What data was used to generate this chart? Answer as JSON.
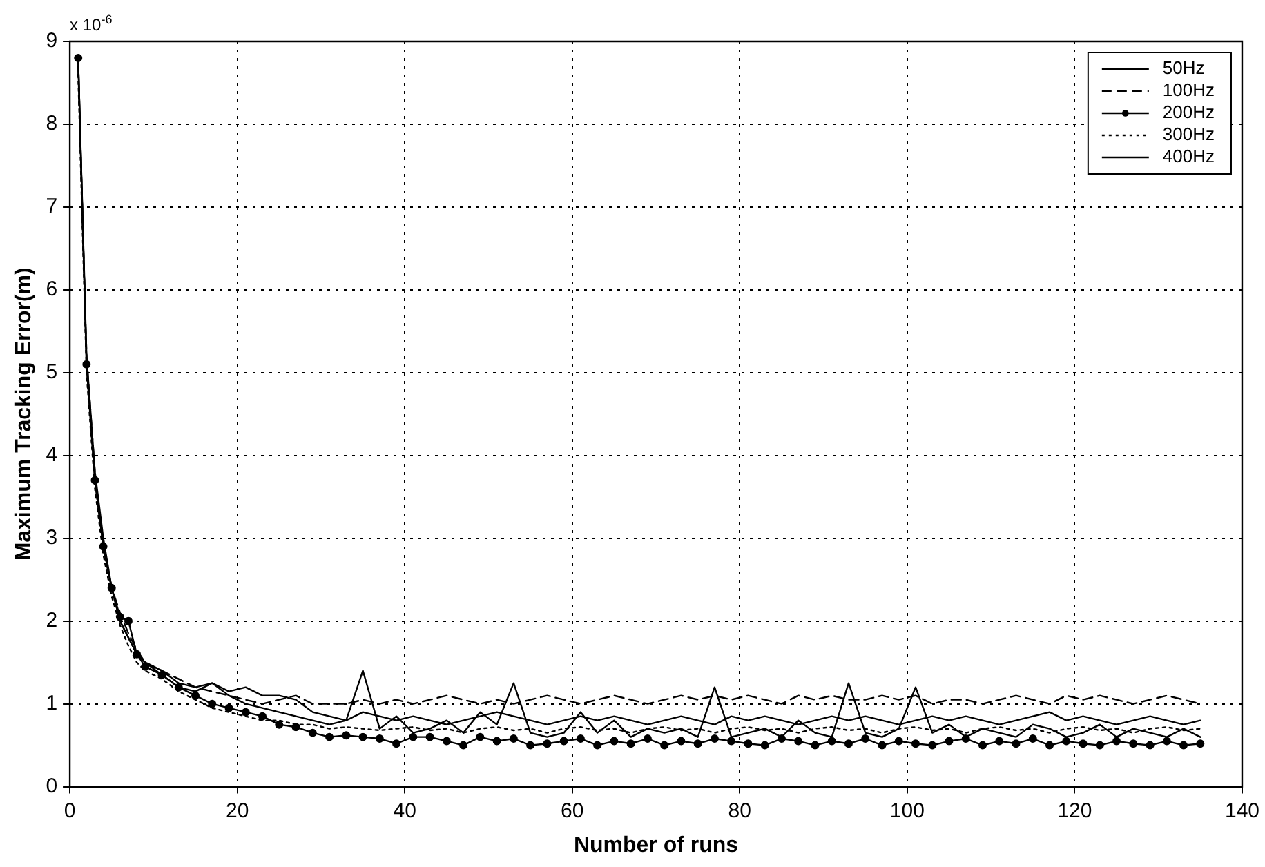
{
  "chart_data": {
    "type": "line",
    "xlabel": "Number of runs",
    "ylabel": "Maximum Tracking Error(m)",
    "annotations": [
      "x 10$^{-6}$"
    ],
    "xlim": [
      0,
      140
    ],
    "xticks": [
      0,
      20,
      40,
      60,
      80,
      100,
      120,
      140
    ],
    "ylim": [
      0,
      9
    ],
    "yticks": [
      0,
      1,
      2,
      3,
      4,
      5,
      6,
      7,
      8,
      9
    ],
    "grid": true,
    "legend": "top right",
    "x": [
      1,
      2,
      3,
      4,
      5,
      6,
      7,
      8,
      9,
      11,
      13,
      15,
      17,
      19,
      21,
      23,
      25,
      27,
      29,
      31,
      33,
      35,
      37,
      39,
      41,
      43,
      45,
      47,
      49,
      51,
      53,
      55,
      57,
      59,
      61,
      63,
      65,
      67,
      69,
      71,
      73,
      75,
      77,
      79,
      81,
      83,
      85,
      87,
      89,
      91,
      93,
      95,
      97,
      99,
      101,
      103,
      105,
      107,
      109,
      111,
      113,
      115,
      117,
      119,
      121,
      123,
      125,
      127,
      129,
      131,
      133,
      135
    ],
    "series": [
      {
        "name": "50Hz",
        "color": "#000000",
        "line_style": "solid",
        "marker": "none",
        "values": [
          8.8,
          5.1,
          3.7,
          2.9,
          2.4,
          2.0,
          1.8,
          1.6,
          1.5,
          1.35,
          1.2,
          1.15,
          1.25,
          1.1,
          1.0,
          0.95,
          0.9,
          0.85,
          0.8,
          0.75,
          0.8,
          1.4,
          0.7,
          0.85,
          0.65,
          0.7,
          0.8,
          0.65,
          0.9,
          0.75,
          1.25,
          0.65,
          0.6,
          0.65,
          0.9,
          0.65,
          0.8,
          0.6,
          0.7,
          0.65,
          0.7,
          0.6,
          1.2,
          0.6,
          0.65,
          0.7,
          0.6,
          0.8,
          0.65,
          0.6,
          1.25,
          0.65,
          0.6,
          0.7,
          1.2,
          0.65,
          0.75,
          0.6,
          0.7,
          0.65,
          0.6,
          0.75,
          0.7,
          0.6,
          0.65,
          0.75,
          0.6,
          0.7,
          0.65,
          0.6,
          0.7,
          0.6
        ]
      },
      {
        "name": "100Hz",
        "color": "#000000",
        "line_style": "dashed",
        "marker": "none",
        "values": [
          8.7,
          5.2,
          3.8,
          2.9,
          2.4,
          2.1,
          1.85,
          1.65,
          1.5,
          1.4,
          1.3,
          1.2,
          1.15,
          1.1,
          1.05,
          1.0,
          1.05,
          1.1,
          1.0,
          1.0,
          1.0,
          1.05,
          1.0,
          1.05,
          1.0,
          1.05,
          1.1,
          1.05,
          1.0,
          1.05,
          1.0,
          1.05,
          1.1,
          1.05,
          1.0,
          1.05,
          1.1,
          1.05,
          1.0,
          1.05,
          1.1,
          1.05,
          1.1,
          1.05,
          1.1,
          1.05,
          1.0,
          1.1,
          1.05,
          1.1,
          1.05,
          1.05,
          1.1,
          1.05,
          1.1,
          1.0,
          1.05,
          1.05,
          1.0,
          1.05,
          1.1,
          1.05,
          1.0,
          1.1,
          1.05,
          1.1,
          1.05,
          1.0,
          1.05,
          1.1,
          1.05,
          1.0
        ]
      },
      {
        "name": "200Hz",
        "color": "#000000",
        "line_style": "solid",
        "marker": "circle",
        "values": [
          8.8,
          5.1,
          3.7,
          2.9,
          2.4,
          2.05,
          2.0,
          1.6,
          1.45,
          1.35,
          1.2,
          1.1,
          1.0,
          0.95,
          0.9,
          0.85,
          0.75,
          0.72,
          0.65,
          0.6,
          0.62,
          0.6,
          0.58,
          0.52,
          0.6,
          0.6,
          0.55,
          0.5,
          0.6,
          0.55,
          0.58,
          0.5,
          0.52,
          0.55,
          0.58,
          0.5,
          0.55,
          0.52,
          0.58,
          0.5,
          0.55,
          0.52,
          0.58,
          0.55,
          0.52,
          0.5,
          0.58,
          0.55,
          0.5,
          0.55,
          0.52,
          0.58,
          0.5,
          0.55,
          0.52,
          0.5,
          0.55,
          0.58,
          0.5,
          0.55,
          0.52,
          0.58,
          0.5,
          0.55,
          0.52,
          0.5,
          0.55,
          0.52,
          0.5,
          0.55,
          0.5,
          0.52
        ]
      },
      {
        "name": "300Hz",
        "color": "#000000",
        "line_style": "dotted",
        "marker": "none",
        "values": [
          8.6,
          5.0,
          3.6,
          2.8,
          2.3,
          1.95,
          1.7,
          1.5,
          1.4,
          1.3,
          1.15,
          1.05,
          0.95,
          0.9,
          0.85,
          0.8,
          0.8,
          0.75,
          0.75,
          0.7,
          0.72,
          0.7,
          0.68,
          0.7,
          0.72,
          0.68,
          0.7,
          0.65,
          0.7,
          0.72,
          0.68,
          0.7,
          0.65,
          0.7,
          0.72,
          0.68,
          0.7,
          0.65,
          0.7,
          0.72,
          0.68,
          0.7,
          0.65,
          0.7,
          0.72,
          0.68,
          0.7,
          0.65,
          0.7,
          0.72,
          0.68,
          0.7,
          0.65,
          0.7,
          0.72,
          0.68,
          0.7,
          0.65,
          0.7,
          0.72,
          0.68,
          0.7,
          0.65,
          0.7,
          0.72,
          0.68,
          0.7,
          0.65,
          0.7,
          0.72,
          0.68,
          0.7
        ]
      },
      {
        "name": "400Hz",
        "color": "#000000",
        "line_style": "solid",
        "marker": "none",
        "values": [
          8.8,
          5.2,
          3.8,
          3.0,
          2.4,
          2.0,
          1.8,
          1.6,
          1.5,
          1.4,
          1.25,
          1.2,
          1.25,
          1.15,
          1.2,
          1.1,
          1.1,
          1.05,
          0.9,
          0.85,
          0.8,
          0.9,
          0.85,
          0.8,
          0.85,
          0.8,
          0.75,
          0.8,
          0.85,
          0.9,
          0.85,
          0.8,
          0.75,
          0.8,
          0.85,
          0.8,
          0.85,
          0.8,
          0.75,
          0.8,
          0.85,
          0.8,
          0.75,
          0.85,
          0.8,
          0.85,
          0.8,
          0.75,
          0.8,
          0.85,
          0.8,
          0.85,
          0.8,
          0.75,
          0.8,
          0.85,
          0.8,
          0.85,
          0.8,
          0.75,
          0.8,
          0.85,
          0.9,
          0.8,
          0.85,
          0.8,
          0.75,
          0.8,
          0.85,
          0.8,
          0.75,
          0.8
        ]
      }
    ]
  }
}
